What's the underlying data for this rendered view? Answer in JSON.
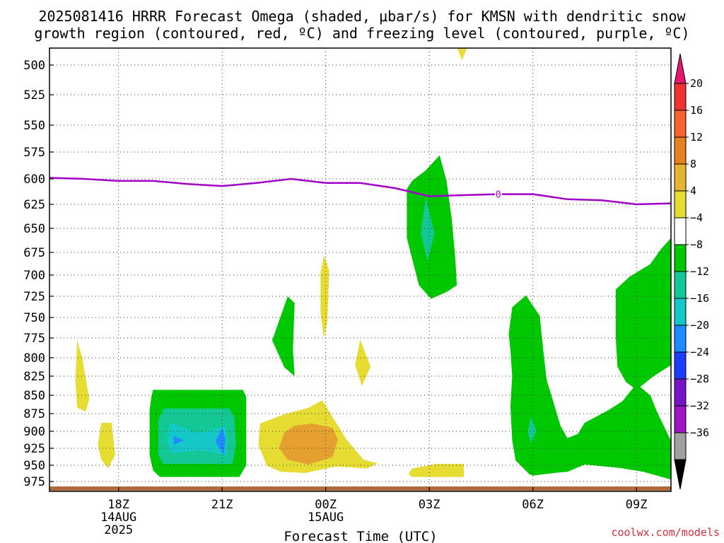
{
  "title_line1": "2025081416 HRRR Forecast Omega (shaded, μbar/s) for KMSN with dendritic snow",
  "title_line2": "growth region (contoured, red, ºC) and freezing level (contoured, purple, ºC)",
  "credit": "coolwx.com/models",
  "credit_color": "#d0303a",
  "chart_data": {
    "type": "contour",
    "title": "2025081416 HRRR Forecast Omega (shaded, μbar/s) for KMSN with dendritic snow growth region (contoured, red, ºC) and freezing level (contoured, purple, ºC)",
    "xlabel": "Forecast Time (UTC)",
    "ylabel": "",
    "x_start_hour": 16,
    "xlim": [
      16,
      34
    ],
    "ylim": [
      990,
      485
    ],
    "x_ticks": [
      {
        "x": 18,
        "label": "18Z",
        "sub1": "14AUG",
        "sub2": "2025"
      },
      {
        "x": 21,
        "label": "21Z",
        "sub1": "",
        "sub2": ""
      },
      {
        "x": 24,
        "label": "00Z",
        "sub1": "15AUG",
        "sub2": ""
      },
      {
        "x": 27,
        "label": "03Z",
        "sub1": "",
        "sub2": ""
      },
      {
        "x": 30,
        "label": "06Z",
        "sub1": "",
        "sub2": ""
      },
      {
        "x": 33,
        "label": "09Z",
        "sub1": "",
        "sub2": ""
      }
    ],
    "y_ticks": [
      500,
      525,
      550,
      575,
      600,
      625,
      650,
      675,
      700,
      725,
      750,
      775,
      800,
      825,
      850,
      875,
      900,
      925,
      950,
      975
    ],
    "grid": true,
    "colorbar": {
      "labels": [
        "20",
        "16",
        "12",
        "8",
        "4",
        "−4",
        "−8",
        "−12",
        "−16",
        "−20",
        "−24",
        "−28",
        "−32",
        "−36"
      ],
      "colors": [
        "#e8166e",
        "#f03232",
        "#f5642d",
        "#e6821e",
        "#e6b432",
        "#e6dc32",
        "#ffffff",
        "#00c800",
        "#14c896",
        "#14c8c8",
        "#1e8cff",
        "#1e3cff",
        "#7814c8",
        "#a014c8",
        "#a0a0a0",
        "#000000"
      ]
    },
    "freezing_level": {
      "color": "#a000c8",
      "label": "0",
      "label_x": 29.0,
      "points": [
        [
          16.0,
          599
        ],
        [
          17.0,
          600
        ],
        [
          18.0,
          602
        ],
        [
          19.0,
          602
        ],
        [
          20.0,
          605
        ],
        [
          21.0,
          607
        ],
        [
          22.0,
          604
        ],
        [
          23.0,
          600
        ],
        [
          24.0,
          604
        ],
        [
          25.0,
          604
        ],
        [
          26.0,
          609
        ],
        [
          27.0,
          617
        ],
        [
          28.0,
          616
        ],
        [
          29.0,
          615
        ],
        [
          30.0,
          615
        ],
        [
          31.0,
          620
        ],
        [
          32.0,
          621
        ],
        [
          33.0,
          625
        ],
        [
          34.0,
          624
        ]
      ]
    },
    "shaded_regions": [
      {
        "level": "4 to 8",
        "color": "#e6dc32",
        "points": [
          [
            27.8,
            485
          ],
          [
            28.1,
            485
          ],
          [
            27.95,
            496
          ]
        ]
      },
      {
        "level": "4 to 8",
        "color": "#e6dc32",
        "points": [
          [
            16.8,
            778
          ],
          [
            16.95,
            800
          ],
          [
            17.15,
            855
          ],
          [
            17.05,
            872
          ],
          [
            16.8,
            867
          ],
          [
            16.75,
            830
          ]
        ]
      },
      {
        "level": "4 to 8",
        "color": "#e6dc32",
        "points": [
          [
            23.95,
            678
          ],
          [
            24.1,
            695
          ],
          [
            24.05,
            755
          ],
          [
            23.95,
            775
          ],
          [
            23.85,
            745
          ],
          [
            23.85,
            698
          ]
        ]
      },
      {
        "level": "4 to 8",
        "color": "#e6dc32",
        "points": [
          [
            25.0,
            777
          ],
          [
            25.3,
            812
          ],
          [
            25.05,
            838
          ],
          [
            24.85,
            810
          ]
        ]
      },
      {
        "level": "4 to 8",
        "color": "#e6dc32",
        "points": [
          [
            17.5,
            888
          ],
          [
            17.8,
            888
          ],
          [
            17.9,
            935
          ],
          [
            17.7,
            955
          ],
          [
            17.5,
            942
          ],
          [
            17.4,
            920
          ]
        ]
      },
      {
        "level": "4 to 8",
        "color": "#e6dc32",
        "points": [
          [
            22.1,
            889
          ],
          [
            22.8,
            876
          ],
          [
            23.5,
            867
          ],
          [
            23.9,
            857
          ],
          [
            24.1,
            872
          ],
          [
            24.6,
            912
          ],
          [
            25.1,
            942
          ],
          [
            25.5,
            947
          ],
          [
            25.2,
            955
          ],
          [
            24.3,
            952
          ],
          [
            23.4,
            962
          ],
          [
            22.7,
            960
          ],
          [
            22.3,
            951
          ],
          [
            22.05,
            920
          ]
        ]
      },
      {
        "level": "4 to 8",
        "color": "#e6dc32",
        "points": [
          [
            26.5,
            955
          ],
          [
            27.2,
            948
          ],
          [
            28.0,
            948
          ],
          [
            28.0,
            968
          ],
          [
            26.5,
            968
          ],
          [
            26.4,
            963
          ]
        ]
      },
      {
        "level": "8 to 12",
        "color": "#e6a030",
        "points": [
          [
            22.8,
            902
          ],
          [
            23.1,
            892
          ],
          [
            23.6,
            889
          ],
          [
            24.2,
            895
          ],
          [
            24.35,
            912
          ],
          [
            24.2,
            938
          ],
          [
            23.5,
            949
          ],
          [
            22.9,
            942
          ],
          [
            22.65,
            925
          ]
        ]
      },
      {
        "level": "-4 to -8",
        "color": "#00c800",
        "points": [
          [
            19.0,
            843
          ],
          [
            21.6,
            843
          ],
          [
            21.7,
            852
          ],
          [
            21.7,
            950
          ],
          [
            21.5,
            968
          ],
          [
            19.2,
            968
          ],
          [
            19.0,
            958
          ],
          [
            18.9,
            935
          ],
          [
            18.9,
            870
          ],
          [
            18.95,
            852
          ]
        ]
      },
      {
        "level": "-8 to -12",
        "color": "#14c896",
        "points": [
          [
            19.3,
            868
          ],
          [
            21.2,
            868
          ],
          [
            21.35,
            880
          ],
          [
            21.4,
            920
          ],
          [
            21.3,
            948
          ],
          [
            19.3,
            948
          ],
          [
            19.15,
            935
          ],
          [
            19.15,
            885
          ]
        ]
      },
      {
        "level": "-12 to -16",
        "color": "#14c8c8",
        "points": [
          [
            19.5,
            888
          ],
          [
            20.3,
            903
          ],
          [
            21.1,
            893
          ],
          [
            21.15,
            935
          ],
          [
            20.3,
            928
          ],
          [
            19.5,
            932
          ],
          [
            19.4,
            912
          ]
        ]
      },
      {
        "level": "-16 to -20",
        "color": "#1e8cff",
        "points": [
          [
            19.6,
            907
          ],
          [
            19.9,
            913
          ],
          [
            19.6,
            920
          ]
        ]
      },
      {
        "level": "-16 to -20",
        "color": "#1e8cff",
        "points": [
          [
            21.0,
            895
          ],
          [
            21.1,
            912
          ],
          [
            21.05,
            935
          ],
          [
            20.8,
            915
          ]
        ]
      },
      {
        "level": "-4 to -8",
        "color": "#00c800",
        "points": [
          [
            22.9,
            725
          ],
          [
            23.1,
            733
          ],
          [
            23.05,
            790
          ],
          [
            23.1,
            825
          ],
          [
            22.8,
            813
          ],
          [
            22.45,
            778
          ]
        ]
      },
      {
        "level": "-4 to -8",
        "color": "#00c800",
        "points": [
          [
            27.3,
            578
          ],
          [
            27.5,
            602
          ],
          [
            27.65,
            640
          ],
          [
            27.75,
            680
          ],
          [
            27.8,
            712
          ],
          [
            27.5,
            720
          ],
          [
            27.05,
            728
          ],
          [
            26.7,
            712
          ],
          [
            26.35,
            660
          ],
          [
            26.35,
            610
          ],
          [
            26.5,
            602
          ],
          [
            26.9,
            592
          ]
        ]
      },
      {
        "level": "-8 to -12",
        "color": "#14c896",
        "points": [
          [
            26.9,
            618
          ],
          [
            27.15,
            655
          ],
          [
            26.95,
            685
          ],
          [
            26.75,
            655
          ]
        ]
      },
      {
        "level": "-4 to -8",
        "color": "#00c800",
        "points": [
          [
            29.4,
            738
          ],
          [
            29.8,
            724
          ],
          [
            30.2,
            748
          ],
          [
            30.3,
            790
          ],
          [
            30.4,
            830
          ],
          [
            30.6,
            860
          ],
          [
            30.8,
            892
          ],
          [
            31.0,
            910
          ],
          [
            31.3,
            904
          ],
          [
            31.5,
            888
          ],
          [
            32.2,
            870
          ],
          [
            32.6,
            858
          ],
          [
            33.0,
            835
          ],
          [
            33.4,
            850
          ],
          [
            33.6,
            873
          ],
          [
            34.0,
            914
          ],
          [
            34.0,
            972
          ],
          [
            33.2,
            960
          ],
          [
            32.5,
            954
          ],
          [
            31.5,
            949
          ],
          [
            31.0,
            960
          ],
          [
            30.6,
            962
          ],
          [
            30.0,
            966
          ],
          [
            29.9,
            964
          ],
          [
            29.5,
            943
          ],
          [
            29.4,
            913
          ],
          [
            29.35,
            865
          ],
          [
            29.4,
            825
          ],
          [
            29.35,
            790
          ],
          [
            29.3,
            770
          ]
        ]
      },
      {
        "level": "-8 to -12",
        "color": "#14c896",
        "points": [
          [
            29.95,
            880
          ],
          [
            30.1,
            900
          ],
          [
            29.95,
            917
          ],
          [
            29.85,
            900
          ]
        ]
      },
      {
        "level": "-4 to -8",
        "color": "#00c800",
        "points": [
          [
            32.4,
            717
          ],
          [
            32.8,
            702
          ],
          [
            33.4,
            688
          ],
          [
            33.7,
            672
          ],
          [
            34.0,
            660
          ],
          [
            34.0,
            810
          ],
          [
            33.5,
            825
          ],
          [
            33.0,
            843
          ],
          [
            32.7,
            833
          ],
          [
            32.45,
            812
          ],
          [
            32.4,
            775
          ]
        ]
      }
    ]
  }
}
